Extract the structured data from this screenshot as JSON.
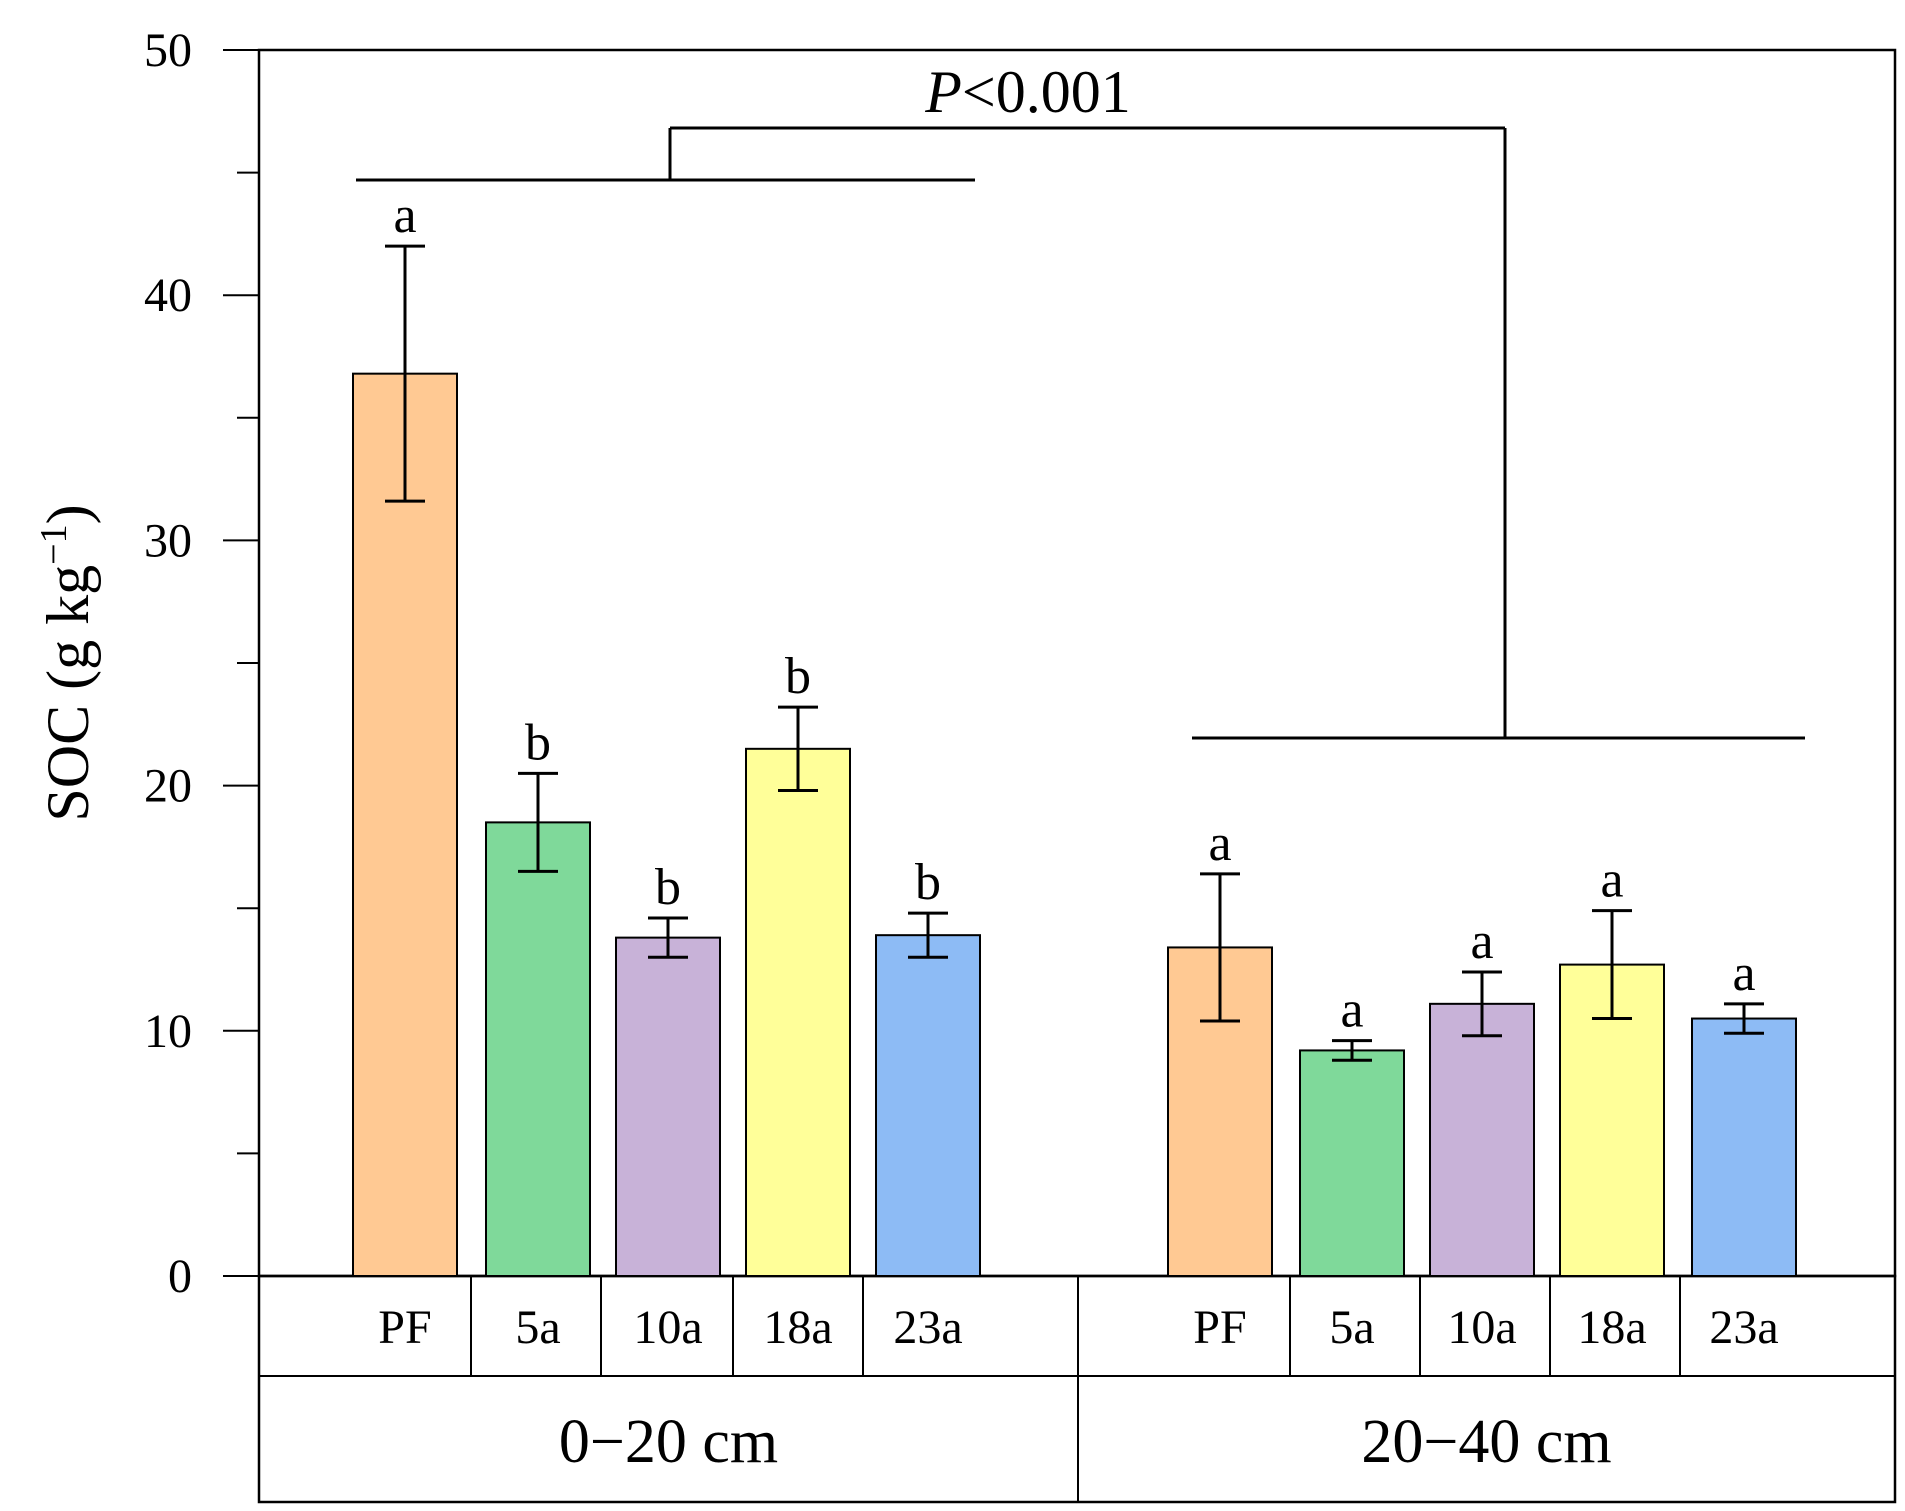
{
  "chart_data": {
    "type": "bar",
    "ylabel": "SOC (g kg",
    "ylabel_superscript": "−1",
    "ylabel_close": ")",
    "ylim": [
      0,
      50
    ],
    "yticks": [
      0,
      10,
      20,
      30,
      40,
      50
    ],
    "significance": {
      "p_prefix": "P",
      "p_rest": "<0.001"
    },
    "groups": [
      {
        "label": "0−20 cm",
        "categories": [
          "PF",
          "5a",
          "10a",
          "18a",
          "23a"
        ],
        "values": [
          36.8,
          18.5,
          13.8,
          21.5,
          13.9
        ],
        "errors": [
          5.2,
          2.0,
          0.8,
          1.7,
          0.9
        ],
        "letters": [
          "a",
          "b",
          "b",
          "b",
          "b"
        ]
      },
      {
        "label": "20−40 cm",
        "categories": [
          "PF",
          "5a",
          "10a",
          "18a",
          "23a"
        ],
        "values": [
          13.4,
          9.2,
          11.1,
          12.7,
          10.5
        ],
        "errors": [
          3.0,
          0.4,
          1.3,
          2.2,
          0.6
        ],
        "letters": [
          "a",
          "a",
          "a",
          "a",
          "a"
        ]
      }
    ],
    "colors": [
      "#FFC993",
      "#7FD99A",
      "#C8B2D8",
      "#FFFF99",
      "#8DBBF5"
    ]
  }
}
